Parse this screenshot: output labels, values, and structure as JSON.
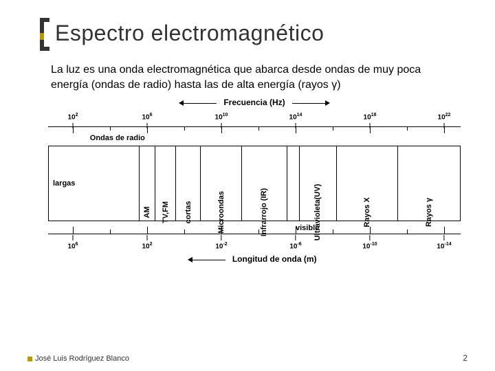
{
  "title": "Espectro electromagnético",
  "intro": "La luz es una onda electromagnética que abarca desde ondas de muy poca energía (ondas de radio) hasta las de alta energía (rayos γ)",
  "freq_axis": {
    "label": "Frecuencia (Hz)",
    "ticks": [
      {
        "exp": "2",
        "pct": 6
      },
      {
        "exp": "6",
        "pct": 24
      },
      {
        "exp": "10",
        "pct": 42
      },
      {
        "exp": "14",
        "pct": 60
      },
      {
        "exp": "18",
        "pct": 78
      },
      {
        "exp": "22",
        "pct": 96
      }
    ]
  },
  "wave_axis": {
    "label": "Longitud de onda (m)",
    "ticks": [
      {
        "exp": "6",
        "pct": 6
      },
      {
        "exp": "2",
        "pct": 24
      },
      {
        "exp": "-2",
        "pct": 42
      },
      {
        "exp": "-6",
        "pct": 60
      },
      {
        "exp": "-10",
        "pct": 78
      },
      {
        "exp": "-14",
        "pct": 96
      }
    ]
  },
  "radio_label": "Ondas de radio",
  "radio_label_pct": 10,
  "visible_label": "visible",
  "visible_pct": 60,
  "bands": [
    {
      "name": "largas",
      "from": 0,
      "to": 22,
      "orient": "h"
    },
    {
      "name": "AM",
      "from": 22,
      "to": 26,
      "orient": "v"
    },
    {
      "name": "TV,FM",
      "from": 26,
      "to": 31,
      "orient": "v"
    },
    {
      "name": "cortas",
      "from": 31,
      "to": 37,
      "orient": "v"
    },
    {
      "name": "Microondas",
      "from": 37,
      "to": 47,
      "orient": "v"
    },
    {
      "name": "Infrarrojo (IR)",
      "from": 47,
      "to": 58,
      "orient": "v"
    },
    {
      "name": "",
      "from": 58,
      "to": 61,
      "orient": "v"
    },
    {
      "name": "Ultravioleta(UV)",
      "from": 61,
      "to": 70,
      "orient": "v"
    },
    {
      "name": "Rayos X",
      "from": 70,
      "to": 85,
      "orient": "v"
    },
    {
      "name": "Rayos γ",
      "from": 85,
      "to": 100,
      "orient": "v"
    }
  ],
  "colors": {
    "text": "#000000",
    "title": "#333333",
    "accent": "#b59a00",
    "bg": "#ffffff"
  },
  "fonts": {
    "title_pt": 32,
    "body_pt": 16,
    "axis_pt": 12,
    "tick_pt": 10,
    "band_pt": 11
  },
  "footer": {
    "author": "José Luis Rodríguez Blanco",
    "page": "2"
  }
}
